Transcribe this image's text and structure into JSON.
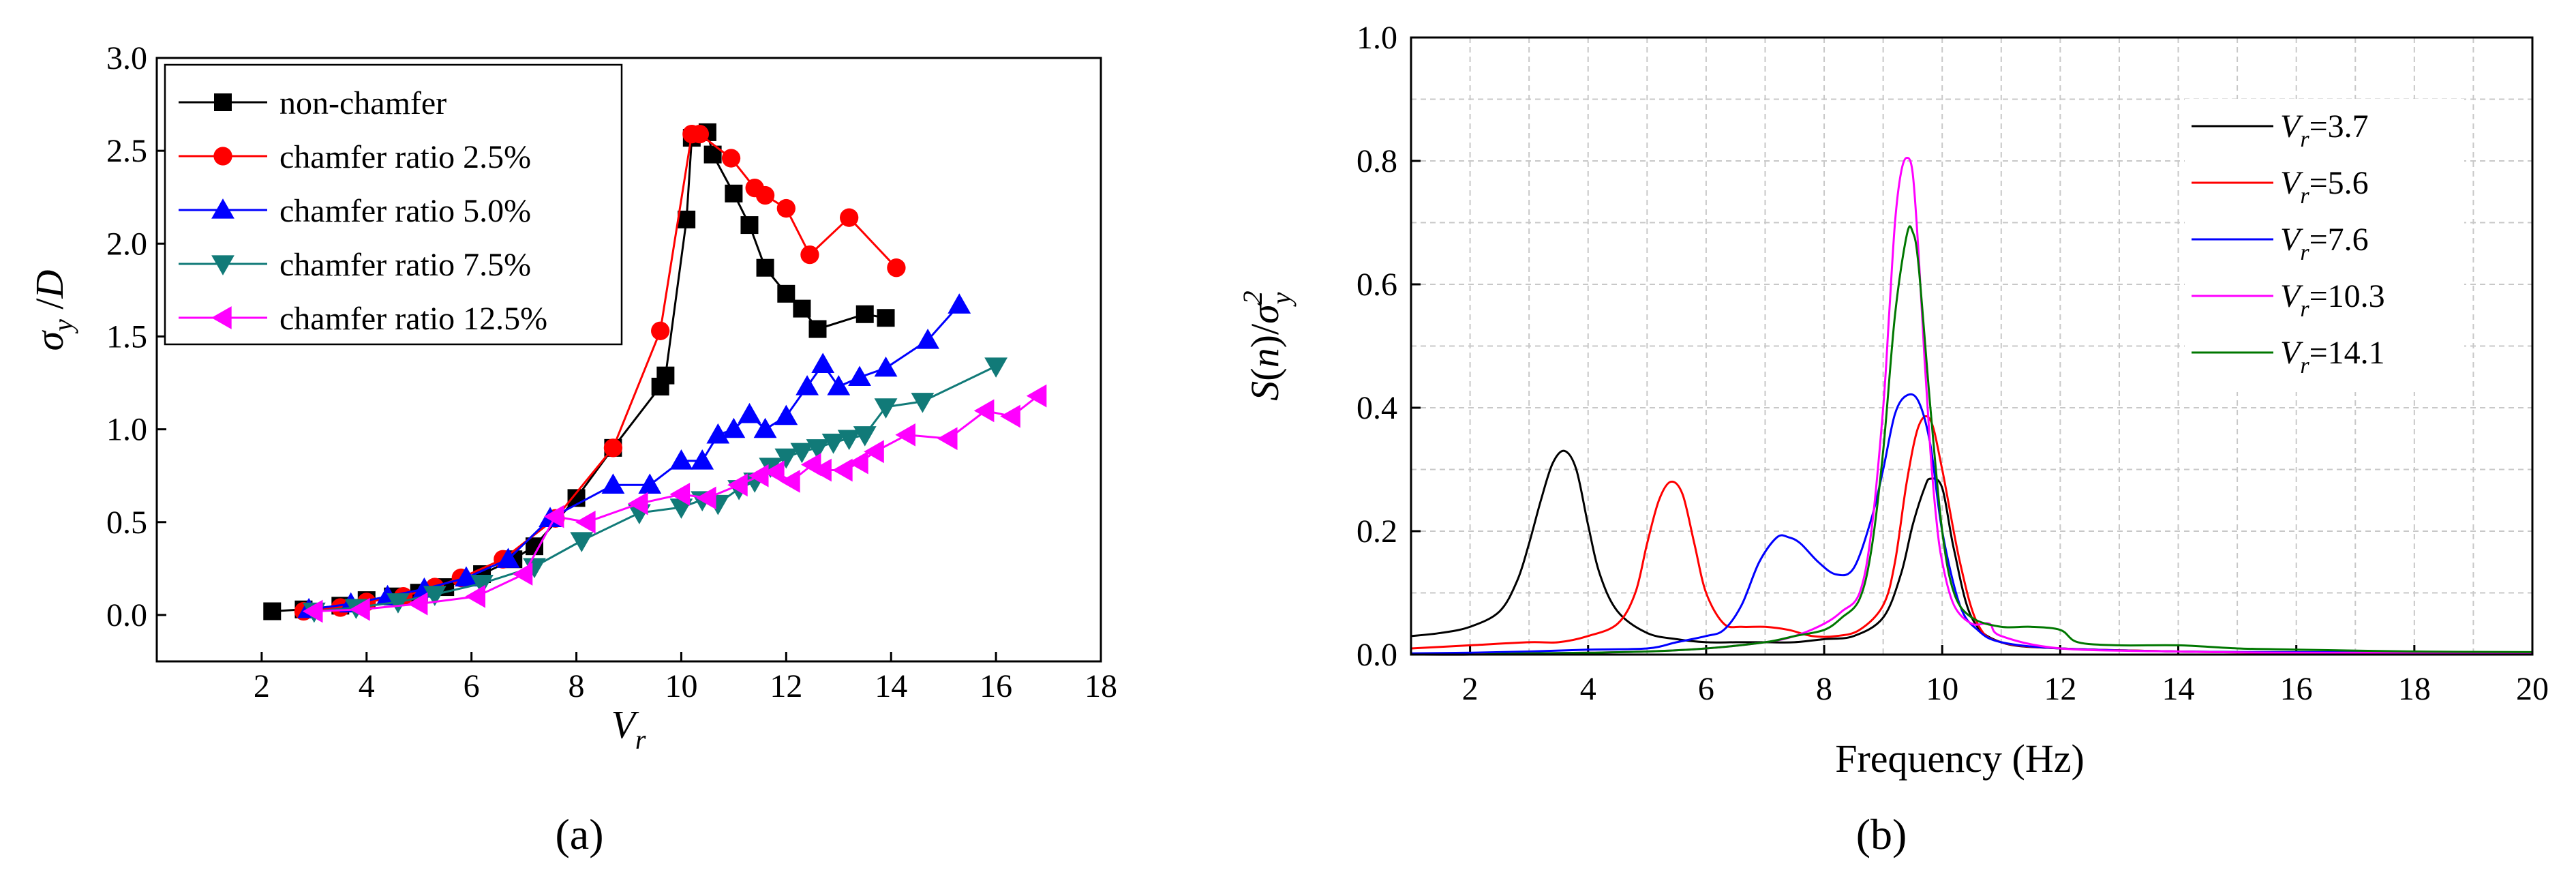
{
  "figure": {
    "panel_labels": [
      "(a)",
      "(b)"
    ]
  },
  "chart_data": [
    {
      "type": "line",
      "panel": "(a)",
      "xlabel": "Vr",
      "ylabel": "σy /D",
      "xlim": [
        0,
        18
      ],
      "ylim": [
        -0.25,
        3.0
      ],
      "xticks": [
        2,
        4,
        6,
        8,
        10,
        12,
        14,
        16,
        18
      ],
      "yticks": [
        0.0,
        0.5,
        1.0,
        1.5,
        2.0,
        2.5,
        3.0
      ],
      "legend_position": "top-left",
      "series": [
        {
          "name": "non-chamfer",
          "color": "#000000",
          "marker": "square",
          "x": [
            2.2,
            2.8,
            3.5,
            4.0,
            4.5,
            5.0,
            5.5,
            6.2,
            6.8,
            7.2,
            8.0,
            8.7,
            9.6,
            9.7,
            10.1,
            10.2,
            10.5,
            10.6,
            11.0,
            11.3,
            11.6,
            12.0,
            12.3,
            12.6,
            13.5,
            13.9
          ],
          "y": [
            0.02,
            0.03,
            0.05,
            0.08,
            0.1,
            0.12,
            0.15,
            0.22,
            0.3,
            0.37,
            0.63,
            0.9,
            1.23,
            1.29,
            2.13,
            2.57,
            2.6,
            2.48,
            2.27,
            2.1,
            1.87,
            1.73,
            1.65,
            1.54,
            1.62,
            1.6
          ]
        },
        {
          "name": "chamfer ratio 2.5%",
          "color": "#ff0000",
          "marker": "circle",
          "x": [
            2.8,
            3.5,
            4.0,
            4.7,
            5.3,
            5.8,
            6.6,
            7.6,
            8.7,
            9.6,
            10.2,
            10.35,
            10.95,
            11.4,
            11.6,
            12.0,
            12.45,
            13.2,
            14.1
          ],
          "y": [
            0.02,
            0.04,
            0.07,
            0.1,
            0.15,
            0.2,
            0.3,
            0.52,
            0.9,
            1.53,
            2.59,
            2.59,
            2.46,
            2.3,
            2.26,
            2.19,
            1.94,
            2.14,
            1.87
          ]
        },
        {
          "name": "chamfer ratio 5.0%",
          "color": "#0000ff",
          "marker": "triangle-up",
          "x": [
            2.9,
            3.7,
            4.4,
            5.1,
            5.9,
            6.7,
            7.5,
            8.7,
            9.4,
            10.0,
            10.4,
            10.7,
            11.0,
            11.3,
            11.6,
            12.0,
            12.4,
            12.7,
            13.0,
            13.4,
            13.9,
            14.7,
            15.3
          ],
          "y": [
            0.03,
            0.06,
            0.1,
            0.14,
            0.2,
            0.3,
            0.52,
            0.7,
            0.7,
            0.83,
            0.83,
            0.97,
            1.0,
            1.08,
            1.0,
            1.07,
            1.23,
            1.35,
            1.23,
            1.28,
            1.33,
            1.48,
            1.67
          ]
        },
        {
          "name": "chamfer ratio 7.5%",
          "color": "#117a78",
          "marker": "triangle-down",
          "x": [
            3.0,
            3.8,
            4.6,
            5.3,
            6.2,
            7.2,
            8.1,
            9.2,
            10.0,
            10.4,
            10.7,
            11.1,
            11.4,
            11.7,
            12.0,
            12.3,
            12.6,
            12.9,
            13.2,
            13.5,
            13.9,
            14.6,
            16.0
          ],
          "y": [
            0.02,
            0.04,
            0.07,
            0.11,
            0.17,
            0.26,
            0.4,
            0.55,
            0.58,
            0.62,
            0.6,
            0.68,
            0.72,
            0.8,
            0.85,
            0.88,
            0.9,
            0.93,
            0.95,
            0.97,
            1.12,
            1.15,
            1.34
          ]
        },
        {
          "name": "chamfer ratio 12.5%",
          "color": "#ff00ff",
          "marker": "triangle-left",
          "x": [
            3.0,
            3.9,
            5.0,
            6.1,
            7.0,
            7.6,
            8.2,
            9.2,
            10.0,
            10.5,
            11.1,
            11.5,
            11.8,
            12.1,
            12.5,
            12.7,
            13.1,
            13.4,
            13.7,
            14.3,
            15.1,
            15.8,
            16.3,
            16.8
          ],
          "y": [
            0.02,
            0.03,
            0.06,
            0.1,
            0.22,
            0.53,
            0.5,
            0.6,
            0.65,
            0.63,
            0.7,
            0.75,
            0.77,
            0.72,
            0.81,
            0.78,
            0.78,
            0.82,
            0.88,
            0.97,
            0.95,
            1.1,
            1.07,
            1.18
          ]
        }
      ]
    },
    {
      "type": "line",
      "panel": "(b)",
      "xlabel": "Frequency (Hz)",
      "ylabel": "S(n)/σy²",
      "xlim": [
        1,
        20
      ],
      "ylim": [
        0,
        1.0
      ],
      "xticks": [
        2,
        4,
        6,
        8,
        10,
        12,
        14,
        16,
        18,
        20
      ],
      "yticks": [
        0.0,
        0.2,
        0.4,
        0.6,
        0.8,
        1.0
      ],
      "grid": true,
      "legend_position": "top-right",
      "series": [
        {
          "name": "Vr=3.7",
          "label_var": "V",
          "label_sub": "r",
          "label_value": "=3.7",
          "color": "#000000",
          "x": [
            1.0,
            1.5,
            2.0,
            2.5,
            2.8,
            3.0,
            3.2,
            3.4,
            3.6,
            3.8,
            4.0,
            4.2,
            4.5,
            5.0,
            5.5,
            6.0,
            6.5,
            7.0,
            7.5,
            8.0,
            8.5,
            9.0,
            9.3,
            9.5,
            9.7,
            9.8,
            10.0,
            10.2,
            10.5,
            11.0,
            12.0,
            14.0,
            16.0,
            18.0,
            20.0
          ],
          "y": [
            0.03,
            0.035,
            0.045,
            0.07,
            0.12,
            0.18,
            0.25,
            0.31,
            0.33,
            0.3,
            0.21,
            0.13,
            0.07,
            0.035,
            0.025,
            0.02,
            0.02,
            0.02,
            0.02,
            0.025,
            0.03,
            0.06,
            0.13,
            0.21,
            0.27,
            0.285,
            0.27,
            0.17,
            0.06,
            0.02,
            0.01,
            0.005,
            0.003,
            0.003,
            0.003
          ]
        },
        {
          "name": "Vr=5.6",
          "label_var": "V",
          "label_sub": "r",
          "label_value": "=5.6",
          "color": "#ff0000",
          "x": [
            1.0,
            2.0,
            3.0,
            3.5,
            4.0,
            4.5,
            4.8,
            5.0,
            5.2,
            5.4,
            5.6,
            5.8,
            6.0,
            6.3,
            6.6,
            7.0,
            7.4,
            7.8,
            8.2,
            8.6,
            9.0,
            9.2,
            9.4,
            9.6,
            9.8,
            10.0,
            10.3,
            10.6,
            11.0,
            12.0,
            14.0,
            16.0,
            20.0
          ],
          "y": [
            0.01,
            0.015,
            0.02,
            0.02,
            0.03,
            0.05,
            0.1,
            0.18,
            0.25,
            0.28,
            0.26,
            0.18,
            0.1,
            0.05,
            0.045,
            0.045,
            0.04,
            0.03,
            0.03,
            0.04,
            0.08,
            0.15,
            0.28,
            0.37,
            0.38,
            0.3,
            0.15,
            0.05,
            0.02,
            0.01,
            0.005,
            0.003,
            0.003
          ]
        },
        {
          "name": "Vr=7.6",
          "label_var": "V",
          "label_sub": "r",
          "label_value": "=7.6",
          "color": "#0000ff",
          "x": [
            1.0,
            2.0,
            3.0,
            4.0,
            5.0,
            5.5,
            6.0,
            6.3,
            6.6,
            6.9,
            7.2,
            7.4,
            7.6,
            7.9,
            8.2,
            8.5,
            8.8,
            9.0,
            9.2,
            9.4,
            9.6,
            9.8,
            10.0,
            10.3,
            10.6,
            11.0,
            12.0,
            14.0,
            16.0,
            20.0
          ],
          "y": [
            0.002,
            0.003,
            0.005,
            0.008,
            0.01,
            0.02,
            0.03,
            0.04,
            0.08,
            0.15,
            0.19,
            0.19,
            0.18,
            0.15,
            0.13,
            0.14,
            0.22,
            0.3,
            0.39,
            0.42,
            0.41,
            0.34,
            0.2,
            0.08,
            0.04,
            0.02,
            0.01,
            0.005,
            0.004,
            0.003
          ]
        },
        {
          "name": "Vr=10.3",
          "label_var": "V",
          "label_sub": "r",
          "label_value": "=10.3",
          "color": "#ff00ff",
          "x": [
            1.0,
            2.0,
            3.0,
            4.0,
            5.0,
            6.0,
            7.0,
            7.5,
            8.0,
            8.3,
            8.6,
            8.8,
            9.0,
            9.1,
            9.2,
            9.3,
            9.4,
            9.5,
            9.6,
            9.7,
            9.8,
            9.9,
            10.0,
            10.2,
            10.5,
            10.8,
            11.0,
            12.0,
            14.0,
            16.0,
            20.0
          ],
          "y": [
            0.0,
            0.0,
            0.002,
            0.003,
            0.005,
            0.01,
            0.02,
            0.03,
            0.05,
            0.07,
            0.1,
            0.2,
            0.4,
            0.55,
            0.7,
            0.78,
            0.805,
            0.78,
            0.65,
            0.48,
            0.33,
            0.22,
            0.15,
            0.08,
            0.05,
            0.05,
            0.03,
            0.01,
            0.005,
            0.003,
            0.003
          ]
        },
        {
          "name": "Vr=14.1",
          "label_var": "V",
          "label_sub": "r",
          "label_value": "=14.1",
          "color": "#007700",
          "x": [
            1.0,
            2.0,
            3.0,
            4.0,
            5.0,
            6.0,
            7.0,
            7.5,
            8.0,
            8.3,
            8.6,
            8.8,
            9.0,
            9.2,
            9.4,
            9.5,
            9.6,
            9.8,
            10.0,
            10.2,
            10.5,
            11.0,
            11.5,
            12.0,
            12.3,
            13.0,
            14.0,
            15.0,
            16.0,
            18.0,
            20.0
          ],
          "y": [
            0.0,
            0.0,
            0.002,
            0.003,
            0.005,
            0.01,
            0.02,
            0.03,
            0.04,
            0.06,
            0.09,
            0.17,
            0.33,
            0.55,
            0.68,
            0.685,
            0.63,
            0.4,
            0.2,
            0.1,
            0.06,
            0.045,
            0.045,
            0.04,
            0.02,
            0.015,
            0.015,
            0.01,
            0.008,
            0.005,
            0.004
          ]
        }
      ]
    }
  ]
}
